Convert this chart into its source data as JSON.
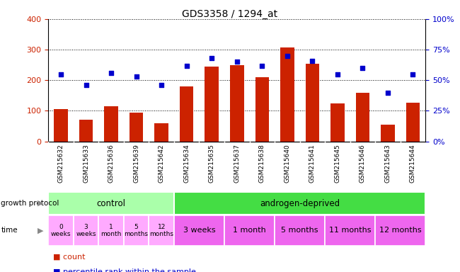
{
  "title": "GDS3358 / 1294_at",
  "samples": [
    "GSM215632",
    "GSM215633",
    "GSM215636",
    "GSM215639",
    "GSM215642",
    "GSM215634",
    "GSM215635",
    "GSM215637",
    "GSM215638",
    "GSM215640",
    "GSM215641",
    "GSM215645",
    "GSM215646",
    "GSM215643",
    "GSM215644"
  ],
  "counts": [
    105,
    70,
    115,
    95,
    60,
    180,
    245,
    250,
    210,
    308,
    255,
    125,
    160,
    55,
    127
  ],
  "percentile_ranks": [
    55,
    46,
    56,
    53,
    46,
    62,
    68,
    65,
    62,
    70,
    66,
    55,
    60,
    40,
    55
  ],
  "bar_color": "#cc2200",
  "dot_color": "#0000cc",
  "ylim_left": [
    0,
    400
  ],
  "ylim_right": [
    0,
    100
  ],
  "yticks_left": [
    0,
    100,
    200,
    300,
    400
  ],
  "yticks_right": [
    0,
    25,
    50,
    75,
    100
  ],
  "yticklabels_right": [
    "0%",
    "25%",
    "50%",
    "75%",
    "100%"
  ],
  "groups": [
    {
      "label": "control",
      "start": 0,
      "end": 5,
      "color": "#aaffaa"
    },
    {
      "label": "androgen-deprived",
      "start": 5,
      "end": 15,
      "color": "#44dd44"
    }
  ],
  "time_groups_control": [
    {
      "label": "0\nweeks",
      "start": 0,
      "end": 1
    },
    {
      "label": "3\nweeks",
      "start": 1,
      "end": 2
    },
    {
      "label": "1\nmonth",
      "start": 2,
      "end": 3
    },
    {
      "label": "5\nmonths",
      "start": 3,
      "end": 4
    },
    {
      "label": "12\nmonths",
      "start": 4,
      "end": 5
    }
  ],
  "time_groups_androgen": [
    {
      "label": "3 weeks",
      "start": 5,
      "end": 7
    },
    {
      "label": "1 month",
      "start": 7,
      "end": 9
    },
    {
      "label": "5 months",
      "start": 9,
      "end": 11
    },
    {
      "label": "11 months",
      "start": 11,
      "end": 13
    },
    {
      "label": "12 months",
      "start": 13,
      "end": 15
    }
  ],
  "time_color_control": "#ffaaff",
  "time_color_androgen": "#ee66ee",
  "growth_protocol_label": "growth protocol",
  "time_label": "time",
  "legend_count": "count",
  "legend_percentile": "percentile rank within the sample",
  "tick_label_color_left": "#cc2200",
  "tick_label_color_right": "#0000cc",
  "xtick_bg_color": "#dddddd"
}
